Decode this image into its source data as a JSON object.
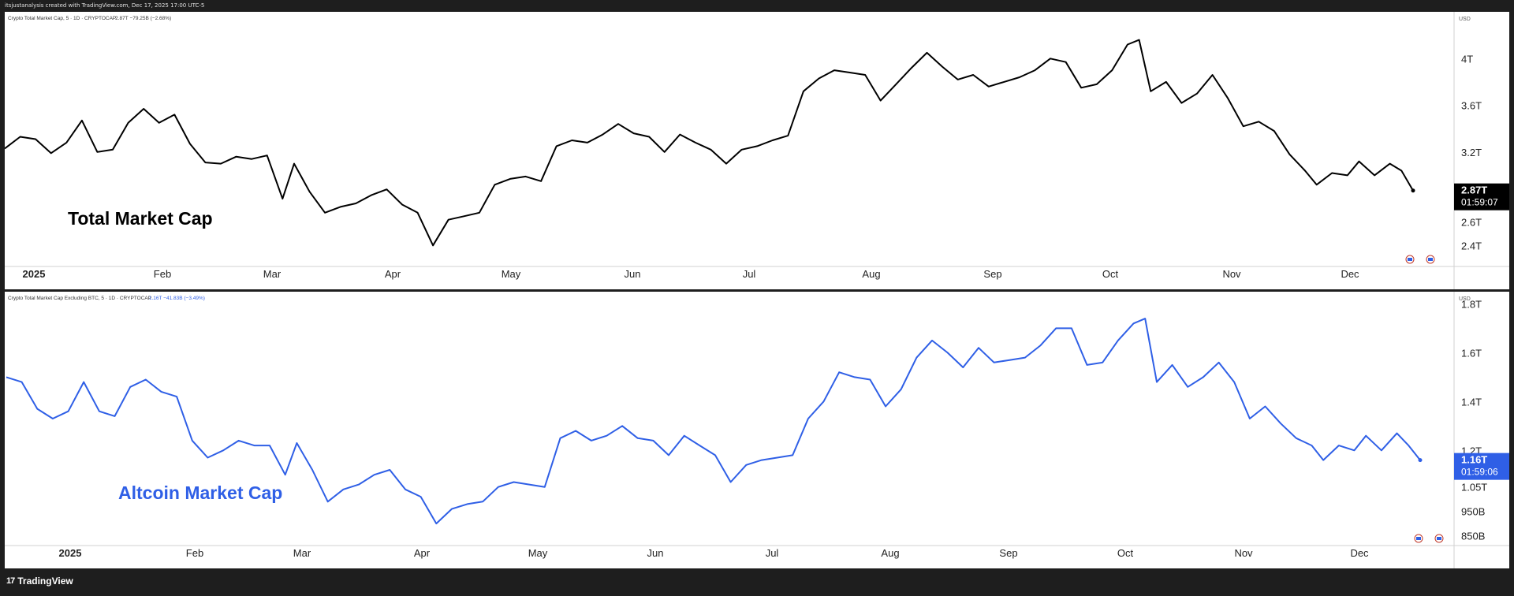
{
  "header": {
    "attribution": "itsjustanalysis created with TradingView.com, Dec 17, 2025 17:00 UTC-5"
  },
  "footer": {
    "brand": "TradingView"
  },
  "colors": {
    "total_line": "#000000",
    "altcoin_line": "#2f5fe6",
    "grid": "#e5e5e5",
    "background": "#ffffff",
    "frame": "#1e1e1e"
  },
  "chart_data": [
    {
      "type": "line",
      "legend_symbol": "Crypto Total Market Cap, 5 · 1D · CRYPTOCAP",
      "legend_value": "2.87T −79.25B (−2.68%)",
      "annotation": "Total Market Cap",
      "currency": "USD",
      "x_ticks": [
        "2025",
        "Feb",
        "Mar",
        "Apr",
        "May",
        "Jun",
        "Jul",
        "Aug",
        "Sep",
        "Oct",
        "Nov",
        "Dec"
      ],
      "y_ticks": [
        "4T",
        "3.6T",
        "3.2T",
        "2.6T",
        "2.4T"
      ],
      "y_tick_values": [
        4.0,
        3.6,
        3.2,
        2.6,
        2.4
      ],
      "ylim": [
        2.22,
        4.4
      ],
      "last_price": "2.87T",
      "countdown": "01:59:07",
      "x_start": "2024-12-17",
      "x_end": "2025-12-17",
      "series": [
        {
          "points": [
            [
              "2024-12-17",
              3.23
            ],
            [
              "2024-12-21",
              3.33
            ],
            [
              "2024-12-25",
              3.31
            ],
            [
              "2024-12-29",
              3.19
            ],
            [
              "2025-01-02",
              3.28
            ],
            [
              "2025-01-06",
              3.47
            ],
            [
              "2025-01-10",
              3.2
            ],
            [
              "2025-01-14",
              3.22
            ],
            [
              "2025-01-18",
              3.45
            ],
            [
              "2025-01-22",
              3.57
            ],
            [
              "2025-01-26",
              3.45
            ],
            [
              "2025-01-30",
              3.52
            ],
            [
              "2025-02-03",
              3.27
            ],
            [
              "2025-02-07",
              3.11
            ],
            [
              "2025-02-11",
              3.1
            ],
            [
              "2025-02-15",
              3.16
            ],
            [
              "2025-02-19",
              3.14
            ],
            [
              "2025-02-23",
              3.17
            ],
            [
              "2025-02-27",
              2.8
            ],
            [
              "2025-03-02",
              3.1
            ],
            [
              "2025-03-06",
              2.86
            ],
            [
              "2025-03-10",
              2.68
            ],
            [
              "2025-03-14",
              2.73
            ],
            [
              "2025-03-18",
              2.76
            ],
            [
              "2025-03-22",
              2.83
            ],
            [
              "2025-03-26",
              2.88
            ],
            [
              "2025-03-30",
              2.75
            ],
            [
              "2025-04-03",
              2.68
            ],
            [
              "2025-04-07",
              2.4
            ],
            [
              "2025-04-11",
              2.62
            ],
            [
              "2025-04-15",
              2.65
            ],
            [
              "2025-04-19",
              2.68
            ],
            [
              "2025-04-23",
              2.92
            ],
            [
              "2025-04-27",
              2.97
            ],
            [
              "2025-05-01",
              2.99
            ],
            [
              "2025-05-05",
              2.95
            ],
            [
              "2025-05-09",
              3.25
            ],
            [
              "2025-05-13",
              3.3
            ],
            [
              "2025-05-17",
              3.28
            ],
            [
              "2025-05-21",
              3.35
            ],
            [
              "2025-05-25",
              3.44
            ],
            [
              "2025-05-29",
              3.36
            ],
            [
              "2025-06-02",
              3.33
            ],
            [
              "2025-06-06",
              3.2
            ],
            [
              "2025-06-10",
              3.35
            ],
            [
              "2025-06-14",
              3.28
            ],
            [
              "2025-06-18",
              3.22
            ],
            [
              "2025-06-22",
              3.1
            ],
            [
              "2025-06-26",
              3.22
            ],
            [
              "2025-06-30",
              3.25
            ],
            [
              "2025-07-04",
              3.3
            ],
            [
              "2025-07-08",
              3.34
            ],
            [
              "2025-07-12",
              3.72
            ],
            [
              "2025-07-16",
              3.83
            ],
            [
              "2025-07-20",
              3.9
            ],
            [
              "2025-07-24",
              3.88
            ],
            [
              "2025-07-28",
              3.86
            ],
            [
              "2025-08-01",
              3.64
            ],
            [
              "2025-08-05",
              3.78
            ],
            [
              "2025-08-09",
              3.92
            ],
            [
              "2025-08-13",
              4.05
            ],
            [
              "2025-08-17",
              3.93
            ],
            [
              "2025-08-21",
              3.82
            ],
            [
              "2025-08-25",
              3.86
            ],
            [
              "2025-08-29",
              3.76
            ],
            [
              "2025-09-02",
              3.8
            ],
            [
              "2025-09-06",
              3.84
            ],
            [
              "2025-09-10",
              3.9
            ],
            [
              "2025-09-14",
              4.0
            ],
            [
              "2025-09-18",
              3.97
            ],
            [
              "2025-09-22",
              3.75
            ],
            [
              "2025-09-26",
              3.78
            ],
            [
              "2025-09-30",
              3.9
            ],
            [
              "2025-10-04",
              4.12
            ],
            [
              "2025-10-07",
              4.16
            ],
            [
              "2025-10-10",
              3.72
            ],
            [
              "2025-10-14",
              3.8
            ],
            [
              "2025-10-18",
              3.62
            ],
            [
              "2025-10-22",
              3.7
            ],
            [
              "2025-10-26",
              3.86
            ],
            [
              "2025-10-30",
              3.66
            ],
            [
              "2025-11-03",
              3.42
            ],
            [
              "2025-11-07",
              3.46
            ],
            [
              "2025-11-11",
              3.38
            ],
            [
              "2025-11-15",
              3.18
            ],
            [
              "2025-11-19",
              3.04
            ],
            [
              "2025-11-22",
              2.92
            ],
            [
              "2025-11-26",
              3.02
            ],
            [
              "2025-11-30",
              3.0
            ],
            [
              "2025-12-03",
              3.12
            ],
            [
              "2025-12-07",
              3.0
            ],
            [
              "2025-12-11",
              3.1
            ],
            [
              "2025-12-14",
              3.04
            ],
            [
              "2025-12-17",
              2.87
            ]
          ]
        }
      ]
    },
    {
      "type": "line",
      "legend_symbol": "Crypto Total Market Cap Excluding BTC, 5 · 1D · CRYPTOCAP",
      "legend_value": "1.16T −41.83B (−3.49%)",
      "annotation": "Altcoin Market Cap",
      "currency": "USD",
      "x_ticks": [
        "2025",
        "Feb",
        "Mar",
        "Apr",
        "May",
        "Jun",
        "Jul",
        "Aug",
        "Sep",
        "Oct",
        "Nov",
        "Dec"
      ],
      "y_ticks": [
        "1.8T",
        "1.6T",
        "1.4T",
        "1.2T",
        "1.05T",
        "950B",
        "850B"
      ],
      "y_tick_values": [
        1.8,
        1.6,
        1.4,
        1.2,
        1.05,
        0.95,
        0.85
      ],
      "ylim": [
        0.81,
        1.85
      ],
      "last_price": "1.16T",
      "countdown": "01:59:06",
      "x_start": "2024-12-17",
      "x_end": "2025-12-17",
      "series": [
        {
          "points": [
            [
              "2024-12-17",
              1.5
            ],
            [
              "2024-12-21",
              1.48
            ],
            [
              "2024-12-25",
              1.37
            ],
            [
              "2024-12-29",
              1.33
            ],
            [
              "2025-01-02",
              1.36
            ],
            [
              "2025-01-06",
              1.48
            ],
            [
              "2025-01-10",
              1.36
            ],
            [
              "2025-01-14",
              1.34
            ],
            [
              "2025-01-18",
              1.46
            ],
            [
              "2025-01-22",
              1.49
            ],
            [
              "2025-01-26",
              1.44
            ],
            [
              "2025-01-30",
              1.42
            ],
            [
              "2025-02-03",
              1.24
            ],
            [
              "2025-02-07",
              1.17
            ],
            [
              "2025-02-11",
              1.2
            ],
            [
              "2025-02-15",
              1.24
            ],
            [
              "2025-02-19",
              1.22
            ],
            [
              "2025-02-23",
              1.22
            ],
            [
              "2025-02-27",
              1.1
            ],
            [
              "2025-03-02",
              1.23
            ],
            [
              "2025-03-06",
              1.12
            ],
            [
              "2025-03-10",
              0.99
            ],
            [
              "2025-03-14",
              1.04
            ],
            [
              "2025-03-18",
              1.06
            ],
            [
              "2025-03-22",
              1.1
            ],
            [
              "2025-03-26",
              1.12
            ],
            [
              "2025-03-30",
              1.04
            ],
            [
              "2025-04-03",
              1.01
            ],
            [
              "2025-04-07",
              0.9
            ],
            [
              "2025-04-11",
              0.96
            ],
            [
              "2025-04-15",
              0.98
            ],
            [
              "2025-04-19",
              0.99
            ],
            [
              "2025-04-23",
              1.05
            ],
            [
              "2025-04-27",
              1.07
            ],
            [
              "2025-05-01",
              1.06
            ],
            [
              "2025-05-05",
              1.05
            ],
            [
              "2025-05-09",
              1.25
            ],
            [
              "2025-05-13",
              1.28
            ],
            [
              "2025-05-17",
              1.24
            ],
            [
              "2025-05-21",
              1.26
            ],
            [
              "2025-05-25",
              1.3
            ],
            [
              "2025-05-29",
              1.25
            ],
            [
              "2025-06-02",
              1.24
            ],
            [
              "2025-06-06",
              1.18
            ],
            [
              "2025-06-10",
              1.26
            ],
            [
              "2025-06-14",
              1.22
            ],
            [
              "2025-06-18",
              1.18
            ],
            [
              "2025-06-22",
              1.07
            ],
            [
              "2025-06-26",
              1.14
            ],
            [
              "2025-06-30",
              1.16
            ],
            [
              "2025-07-04",
              1.17
            ],
            [
              "2025-07-08",
              1.18
            ],
            [
              "2025-07-12",
              1.33
            ],
            [
              "2025-07-16",
              1.4
            ],
            [
              "2025-07-20",
              1.52
            ],
            [
              "2025-07-24",
              1.5
            ],
            [
              "2025-07-28",
              1.49
            ],
            [
              "2025-08-01",
              1.38
            ],
            [
              "2025-08-05",
              1.45
            ],
            [
              "2025-08-09",
              1.58
            ],
            [
              "2025-08-13",
              1.65
            ],
            [
              "2025-08-17",
              1.6
            ],
            [
              "2025-08-21",
              1.54
            ],
            [
              "2025-08-25",
              1.62
            ],
            [
              "2025-08-29",
              1.56
            ],
            [
              "2025-09-02",
              1.57
            ],
            [
              "2025-09-06",
              1.58
            ],
            [
              "2025-09-10",
              1.63
            ],
            [
              "2025-09-14",
              1.7
            ],
            [
              "2025-09-18",
              1.7
            ],
            [
              "2025-09-22",
              1.55
            ],
            [
              "2025-09-26",
              1.56
            ],
            [
              "2025-09-30",
              1.65
            ],
            [
              "2025-10-04",
              1.72
            ],
            [
              "2025-10-07",
              1.74
            ],
            [
              "2025-10-10",
              1.48
            ],
            [
              "2025-10-14",
              1.55
            ],
            [
              "2025-10-18",
              1.46
            ],
            [
              "2025-10-22",
              1.5
            ],
            [
              "2025-10-26",
              1.56
            ],
            [
              "2025-10-30",
              1.48
            ],
            [
              "2025-11-03",
              1.33
            ],
            [
              "2025-11-07",
              1.38
            ],
            [
              "2025-11-11",
              1.31
            ],
            [
              "2025-11-15",
              1.25
            ],
            [
              "2025-11-19",
              1.22
            ],
            [
              "2025-11-22",
              1.16
            ],
            [
              "2025-11-26",
              1.22
            ],
            [
              "2025-11-30",
              1.2
            ],
            [
              "2025-12-03",
              1.26
            ],
            [
              "2025-12-07",
              1.2
            ],
            [
              "2025-12-11",
              1.27
            ],
            [
              "2025-12-14",
              1.22
            ],
            [
              "2025-12-17",
              1.16
            ]
          ]
        }
      ]
    }
  ]
}
